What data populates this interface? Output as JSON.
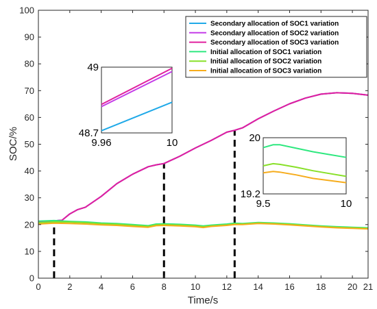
{
  "chart_data": {
    "type": "line",
    "xlabel": "Time/s",
    "ylabel": "SOC/%",
    "xlim": [
      0,
      21
    ],
    "ylim": [
      0,
      100
    ],
    "xticks": [
      "0",
      "2",
      "4",
      "6",
      "8",
      "10",
      "12",
      "14",
      "16",
      "18",
      "20",
      "21"
    ],
    "yticks": [
      "0",
      "10",
      "20",
      "30",
      "40",
      "50",
      "60",
      "70",
      "80",
      "90",
      "100"
    ],
    "grid": false,
    "legend_position": "top-right",
    "series": [
      {
        "name": "Secondary allocation of SOC1 variation",
        "color": "#1fa9e8",
        "x": [
          0,
          1,
          1.5,
          2,
          2.5,
          3,
          4,
          5,
          6,
          7,
          7.5,
          8,
          9,
          10,
          11,
          12,
          12.5,
          13,
          14,
          15,
          16,
          17,
          18,
          19,
          20,
          21
        ],
        "y": [
          21.2,
          21.4,
          21.6,
          24,
          25.6,
          26.5,
          30.5,
          35.3,
          38.8,
          41.6,
          42.3,
          42.8,
          45.5,
          48.6,
          51.4,
          54.5,
          55.2,
          56.1,
          59.5,
          62.4,
          65.1,
          67.2,
          68.7,
          69.2,
          69,
          68.3
        ]
      },
      {
        "name": "Secondary allocation of SOC2 variation",
        "color": "#c43ce8",
        "x": [
          0,
          1,
          1.5,
          2,
          2.5,
          3,
          4,
          5,
          6,
          7,
          7.5,
          8,
          9,
          10,
          11,
          12,
          12.5,
          13,
          14,
          15,
          16,
          17,
          18,
          19,
          20,
          21
        ],
        "y": [
          21.2,
          21.4,
          21.6,
          24,
          25.6,
          26.5,
          30.5,
          35.3,
          38.8,
          41.6,
          42.3,
          42.8,
          45.5,
          48.6,
          51.4,
          54.5,
          55.2,
          56.1,
          59.5,
          62.4,
          65.1,
          67.2,
          68.7,
          69.2,
          69,
          68.3
        ]
      },
      {
        "name": "Secondary allocation of SOC3 variation",
        "color": "#e0209e",
        "x": [
          0,
          1,
          1.5,
          2,
          2.5,
          3,
          4,
          5,
          6,
          7,
          7.5,
          8,
          9,
          10,
          11,
          12,
          12.5,
          13,
          14,
          15,
          16,
          17,
          18,
          19,
          20,
          21
        ],
        "y": [
          21.2,
          21.4,
          21.6,
          24,
          25.6,
          26.5,
          30.5,
          35.3,
          38.8,
          41.6,
          42.3,
          42.8,
          45.5,
          48.6,
          51.4,
          54.5,
          55.2,
          56.1,
          59.5,
          62.4,
          65.1,
          67.2,
          68.7,
          69.2,
          69,
          68.3
        ]
      },
      {
        "name": "Initial allocation of SOC1 variation",
        "color": "#2ee87f",
        "x": [
          0,
          1,
          2,
          3,
          4,
          5,
          6,
          7,
          7.5,
          8,
          9,
          10,
          10.5,
          11,
          12,
          12.5,
          13,
          14,
          15,
          16,
          17,
          18,
          19,
          20,
          21
        ],
        "y": [
          21.3,
          21.5,
          21.2,
          21,
          20.6,
          20.4,
          20,
          19.6,
          20.2,
          20.3,
          20.1,
          19.8,
          19.5,
          19.8,
          20.2,
          20.5,
          20.4,
          20.8,
          20.6,
          20.3,
          19.9,
          19.5,
          19.2,
          19,
          18.8
        ]
      },
      {
        "name": "Initial allocation of SOC2 variation",
        "color": "#88e028",
        "x": [
          0,
          1,
          2,
          3,
          4,
          5,
          6,
          7,
          7.5,
          8,
          9,
          10,
          10.5,
          11,
          12,
          12.5,
          13,
          14,
          15,
          16,
          17,
          18,
          19,
          20,
          21
        ],
        "y": [
          20.7,
          21,
          20.9,
          20.7,
          20.3,
          20.1,
          19.7,
          19.3,
          19.9,
          20,
          19.8,
          19.5,
          19.2,
          19.5,
          19.9,
          20.2,
          20.2,
          20.6,
          20.4,
          20.1,
          19.7,
          19.3,
          19,
          18.8,
          18.6
        ]
      },
      {
        "name": "Initial allocation of SOC3 variation",
        "color": "#f6ac1c",
        "x": [
          0,
          1,
          2,
          3,
          4,
          5,
          6,
          7,
          7.5,
          8,
          9,
          10,
          10.5,
          11,
          12,
          12.5,
          13,
          14,
          15,
          16,
          17,
          18,
          19,
          20,
          21
        ],
        "y": [
          20.2,
          20.5,
          20.4,
          20.2,
          19.9,
          19.7,
          19.3,
          19,
          19.6,
          19.7,
          19.5,
          19.2,
          18.9,
          19.3,
          19.7,
          20,
          20,
          20.4,
          20.2,
          19.9,
          19.5,
          19.1,
          18.8,
          18.6,
          18.4
        ]
      }
    ],
    "markers": [
      1,
      8,
      12.5
    ],
    "insets": [
      {
        "xlim": [
          9.96,
          10
        ],
        "ylim": [
          48.7,
          49
        ],
        "x_labels": [
          "9.96",
          "10"
        ],
        "y_labels": [
          "48.7",
          "49"
        ],
        "series": [
          {
            "color": "#1fa9e8",
            "x": [
              9.96,
              10
            ],
            "y": [
              48.71,
              48.84
            ]
          },
          {
            "color": "#c43ce8",
            "x": [
              9.96,
              10
            ],
            "y": [
              48.82,
              48.98
            ]
          },
          {
            "color": "#e0209e",
            "x": [
              9.96,
              10
            ],
            "y": [
              48.83,
              48.995
            ]
          }
        ]
      },
      {
        "xlim": [
          9.5,
          10
        ],
        "ylim": [
          19.2,
          20
        ],
        "x_labels": [
          "9.5",
          "10"
        ],
        "y_labels": [
          "19.2",
          "20"
        ],
        "series": [
          {
            "color": "#2ee87f",
            "x": [
              9.5,
              9.56,
              9.6,
              9.7,
              9.8,
              9.9,
              10
            ],
            "y": [
              19.86,
              19.9,
              19.9,
              19.85,
              19.8,
              19.76,
              19.72
            ]
          },
          {
            "color": "#88e028",
            "x": [
              9.5,
              9.56,
              9.6,
              9.7,
              9.8,
              9.9,
              10
            ],
            "y": [
              19.6,
              19.63,
              19.62,
              19.58,
              19.53,
              19.49,
              19.45
            ]
          },
          {
            "color": "#f6ac1c",
            "x": [
              9.5,
              9.56,
              9.6,
              9.7,
              9.8,
              9.9,
              10
            ],
            "y": [
              19.5,
              19.52,
              19.51,
              19.47,
              19.42,
              19.39,
              19.36
            ]
          }
        ]
      }
    ]
  }
}
